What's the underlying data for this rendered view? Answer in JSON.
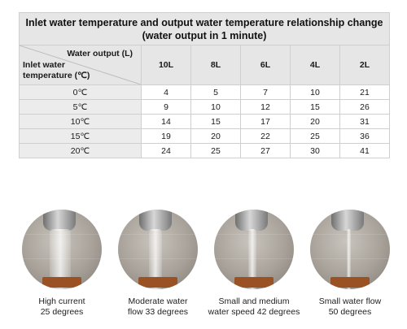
{
  "table": {
    "title_line1": "Inlet water temperature and output water temperature relationship change",
    "title_line2": "(water output in 1 minute)",
    "corner_top": "Water output (L)",
    "corner_left_line1": "Inlet water",
    "corner_left_line2": "temperature (℃)",
    "columns": [
      "10L",
      "8L",
      "6L",
      "4L",
      "2L"
    ],
    "rows": [
      {
        "label": "0℃",
        "values": [
          "4",
          "5",
          "7",
          "10",
          "21"
        ]
      },
      {
        "label": "5℃",
        "values": [
          "9",
          "10",
          "12",
          "15",
          "26"
        ]
      },
      {
        "label": "10℃",
        "values": [
          "14",
          "15",
          "17",
          "20",
          "31"
        ]
      },
      {
        "label": "15℃",
        "values": [
          "19",
          "20",
          "22",
          "25",
          "36"
        ]
      },
      {
        "label": "20℃",
        "values": [
          "24",
          "25",
          "27",
          "30",
          "41"
        ]
      }
    ]
  },
  "panels": [
    {
      "line1": "High current",
      "line2": "25 degrees"
    },
    {
      "line1": "Moderate water",
      "line2": "flow 33 degrees"
    },
    {
      "line1": "Small and medium",
      "line2": "water speed 42 degrees"
    },
    {
      "line1": "Small water flow",
      "line2": "50 degrees"
    }
  ]
}
